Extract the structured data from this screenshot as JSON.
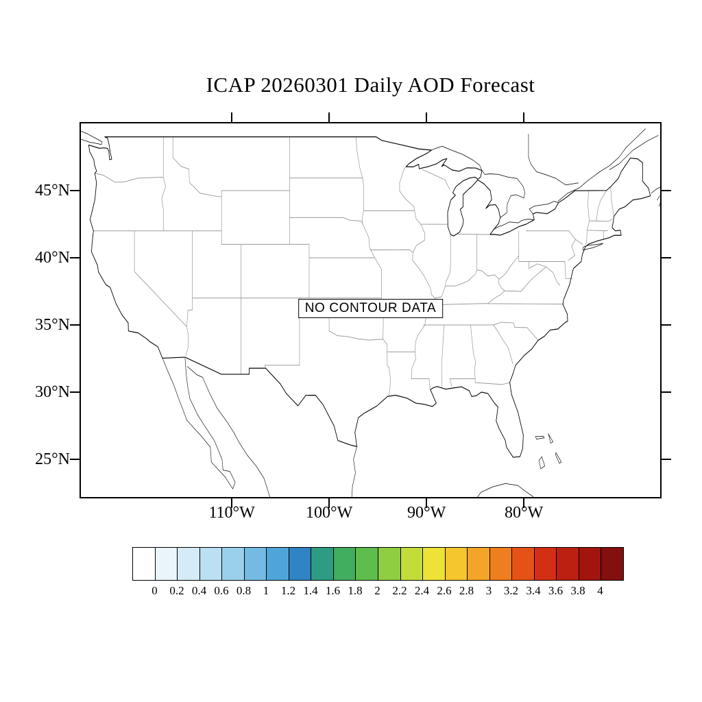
{
  "title": "ICAP 20260301 Daily AOD Forecast",
  "map": {
    "no_data_label": "NO CONTOUR DATA",
    "extent": {
      "lon_min": -125.5,
      "lon_max": -66.0,
      "lat_min": 22.2,
      "lat_max": 50.0
    },
    "lat_ticks": [
      {
        "label": "45°N",
        "lat": 45
      },
      {
        "label": "40°N",
        "lat": 40
      },
      {
        "label": "35°N",
        "lat": 35
      },
      {
        "label": "30°N",
        "lat": 30
      },
      {
        "label": "25°N",
        "lat": 25
      }
    ],
    "lon_ticks": [
      {
        "label": "110°W",
        "lon": -110
      },
      {
        "label": "100°W",
        "lon": -100
      },
      {
        "label": "90°W",
        "lon": -90
      },
      {
        "label": "80°W",
        "lon": -80
      }
    ]
  },
  "colorbar": {
    "levels": [
      "0",
      "0.2",
      "0.4",
      "0.6",
      "0.8",
      "1",
      "1.2",
      "1.4",
      "1.6",
      "1.8",
      "2",
      "2.2",
      "2.4",
      "2.6",
      "2.8",
      "3",
      "3.2",
      "3.4",
      "3.6",
      "3.8",
      "4"
    ],
    "colors": [
      "#FFFFFF",
      "#EAF5FB",
      "#D5EBF7",
      "#BBDFF3",
      "#9AD0EC",
      "#73BBE2",
      "#4FA4D8",
      "#3084C4",
      "#2E9C83",
      "#41AD5F",
      "#5FBD4B",
      "#8FCD42",
      "#C2DC39",
      "#EFE236",
      "#F6C62E",
      "#F4A428",
      "#EF7E1F",
      "#E55217",
      "#D32F14",
      "#BC2011",
      "#A2150F",
      "#82100E"
    ]
  },
  "chart_data": {
    "type": "heatmap",
    "title": "ICAP 20260301 Daily AOD Forecast",
    "basemap": "Continental United States with state borders",
    "x_tick_labels": [
      "110°W",
      "100°W",
      "90°W",
      "80°W"
    ],
    "y_tick_labels": [
      "45°N",
      "40°N",
      "35°N",
      "30°N",
      "25°N"
    ],
    "x_range_deg_lon": [
      -125.5,
      -66.0
    ],
    "y_range_deg_lat": [
      22.2,
      50.0
    ],
    "colorbar_levels": [
      0,
      0.2,
      0.4,
      0.6,
      0.8,
      1,
      1.2,
      1.4,
      1.6,
      1.8,
      2,
      2.2,
      2.4,
      2.6,
      2.8,
      3,
      3.2,
      3.4,
      3.6,
      3.8,
      4
    ],
    "values": [],
    "annotation": "NO CONTOUR DATA",
    "legend_position": "bottom"
  }
}
